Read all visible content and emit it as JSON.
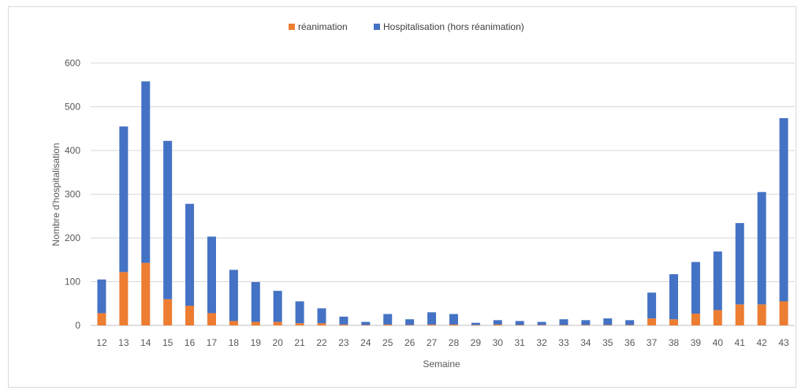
{
  "chart_data": {
    "type": "bar",
    "stacked": true,
    "title": "",
    "xlabel": "Semaine",
    "ylabel": "Nombre d'hospitalisation",
    "ylim": [
      0,
      600
    ],
    "yticks": [
      0,
      100,
      200,
      300,
      400,
      500,
      600
    ],
    "grid": true,
    "legend_position": "top",
    "categories": [
      "12",
      "13",
      "14",
      "15",
      "16",
      "17",
      "18",
      "19",
      "20",
      "21",
      "22",
      "23",
      "24",
      "25",
      "26",
      "27",
      "28",
      "29",
      "30",
      "31",
      "32",
      "33",
      "34",
      "35",
      "36",
      "37",
      "38",
      "39",
      "40",
      "41",
      "42",
      "43"
    ],
    "series": [
      {
        "name": "réanimation",
        "color": "#ED7D31",
        "values": [
          28,
          122,
          143,
          60,
          45,
          28,
          10,
          8,
          8,
          5,
          5,
          2,
          1,
          2,
          1,
          2,
          2,
          1,
          2,
          1,
          1,
          1,
          1,
          1,
          1,
          16,
          14,
          27,
          35,
          48,
          48,
          55
        ]
      },
      {
        "name": "Hospitalisation (hors réanimation)",
        "color": "#4472C4",
        "values": [
          77,
          333,
          415,
          362,
          233,
          175,
          117,
          91,
          71,
          50,
          34,
          18,
          7,
          24,
          13,
          28,
          24,
          5,
          10,
          9,
          7,
          13,
          11,
          15,
          11,
          59,
          103,
          118,
          134,
          186,
          257,
          419
        ]
      }
    ]
  }
}
